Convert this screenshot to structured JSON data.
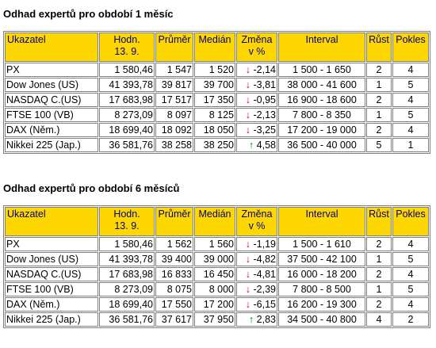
{
  "headers": {
    "ukazatel": "Ukazatel",
    "hodn1": "Hodn.",
    "hodn2": "13. 9.",
    "prumer": "Průměr",
    "median": "Medián",
    "zmena1": "Změna",
    "zmena2": "v %",
    "interval": "Interval",
    "rust": "Růst",
    "pokles": "Pokles"
  },
  "arrows": {
    "down": "↓",
    "up": "↑"
  },
  "sections": [
    {
      "title": "Odhad expertů pro období 1 měsíc",
      "rows": [
        {
          "name": "PX",
          "value": "1 580,46",
          "avg": "1 547",
          "median": "1 520",
          "dir": "down",
          "change": "-2,14",
          "interval": "1 500 - 1 650",
          "up": "2",
          "down": "4"
        },
        {
          "name": "Dow Jones (US)",
          "value": "41 393,78",
          "avg": "39 817",
          "median": "39 700",
          "dir": "down",
          "change": "-3,81",
          "interval": "38 000 - 41 600",
          "up": "1",
          "down": "5"
        },
        {
          "name": "NASDAQ C.(US)",
          "value": "17 683,98",
          "avg": "17 517",
          "median": "17 350",
          "dir": "down",
          "change": "-0,95",
          "interval": "16 900 - 18 600",
          "up": "2",
          "down": "4"
        },
        {
          "name": "FTSE 100 (VB)",
          "value": "8 273,09",
          "avg": "8 097",
          "median": "8 125",
          "dir": "down",
          "change": "-2,13",
          "interval": "7 800 - 8 350",
          "up": "1",
          "down": "5"
        },
        {
          "name": "DAX (Něm.)",
          "value": "18 699,40",
          "avg": "18 092",
          "median": "18 050",
          "dir": "down",
          "change": "-3,25",
          "interval": "17 200 - 19 000",
          "up": "2",
          "down": "4"
        },
        {
          "name": "Nikkei 225 (Jap.)",
          "value": "36 581,76",
          "avg": "38 258",
          "median": "38 250",
          "dir": "up",
          "change": "4,58",
          "interval": "36 500 - 40 000",
          "up": "5",
          "down": "1"
        }
      ]
    },
    {
      "title": "Odhad expertů pro období 6 měsíců",
      "rows": [
        {
          "name": "PX",
          "value": "1 580,46",
          "avg": "1 562",
          "median": "1 560",
          "dir": "down",
          "change": "-1,19",
          "interval": "1 500 - 1 610",
          "up": "2",
          "down": "4"
        },
        {
          "name": "Dow Jones (US)",
          "value": "41 393,78",
          "avg": "39 400",
          "median": "39 000",
          "dir": "down",
          "change": "-4,82",
          "interval": "37 500 - 42 100",
          "up": "1",
          "down": "5"
        },
        {
          "name": "NASDAQ C.(US)",
          "value": "17 683,98",
          "avg": "16 833",
          "median": "16 450",
          "dir": "down",
          "change": "-4,81",
          "interval": "16 000 - 18 200",
          "up": "2",
          "down": "4"
        },
        {
          "name": "FTSE 100 (VB)",
          "value": "8 273,09",
          "avg": "8 075",
          "median": "8 000",
          "dir": "down",
          "change": "-2,39",
          "interval": "7 800 - 8 500",
          "up": "1",
          "down": "5"
        },
        {
          "name": "DAX (Něm.)",
          "value": "18 699,40",
          "avg": "17 550",
          "median": "17 200",
          "dir": "down",
          "change": "-6,15",
          "interval": "16 200 - 19 300",
          "up": "2",
          "down": "4"
        },
        {
          "name": "Nikkei 225 (Jap.)",
          "value": "36 581,76",
          "avg": "37 617",
          "median": "37 950",
          "dir": "up",
          "change": "2,83",
          "interval": "34 500 - 40 800",
          "up": "4",
          "down": "2"
        }
      ]
    }
  ]
}
